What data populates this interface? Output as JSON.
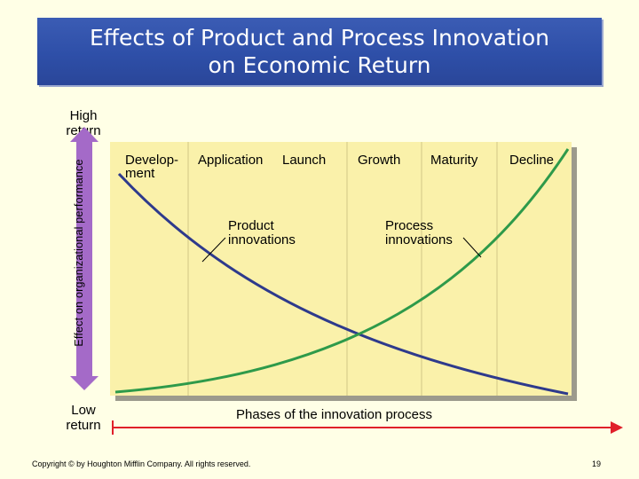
{
  "slide": {
    "title_line1": "Effects of Product and Process Innovation",
    "title_line2": "on Economic Return",
    "high_label_1": "High",
    "high_label_2": "return",
    "low_label_1": "Low",
    "low_label_2": "return",
    "y_axis_label": "Effect on organizational performance",
    "x_axis_label": "Phases of the innovation process",
    "phases": {
      "development_1": "Develop-",
      "development_2": "ment",
      "application": "Application",
      "launch": "Launch",
      "growth": "Growth",
      "maturity": "Maturity",
      "decline": "Decline"
    },
    "callouts": {
      "product_1": "Product",
      "product_2": "innovations",
      "process_1": "Process",
      "process_2": "innovations"
    },
    "copyright": "Copyright © by Houghton Mifflin Company. All rights reserved.",
    "page_number": "19"
  },
  "colors": {
    "title_bg": "#2E4FA8",
    "panel_bg": "#FAF1AA",
    "panel_shadow": "#9C9A8C",
    "product_curve": "#2E3A8C",
    "process_curve": "#2E9A4A",
    "x_arrow": "#E0202A",
    "y_arrow": "#A46AC8"
  }
}
